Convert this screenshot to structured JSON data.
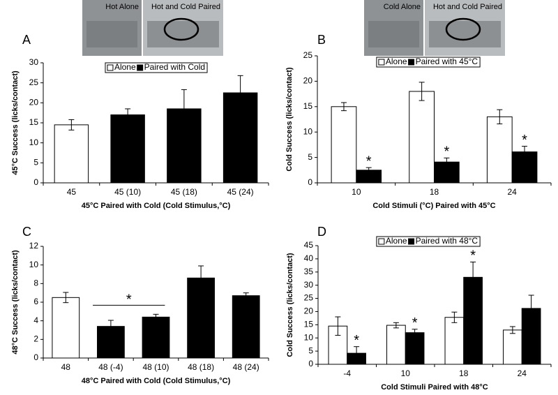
{
  "chart_data": [
    {
      "type": "bar",
      "panel": "A",
      "photo_labels": [
        "Hot Alone",
        "Hot and Cold Paired"
      ],
      "ylabel": "45°C Success (licks/contact)",
      "xlabel": "45°C Paired with Cold (Cold Stimulus,°C)",
      "categories": [
        "45",
        "45 (10)",
        "45 (18)",
        "45 (24)"
      ],
      "series": [
        {
          "name": "Alone",
          "color": "#ffffff",
          "values": [
            14.5,
            null,
            null,
            null
          ],
          "errors": [
            1.3,
            null,
            null,
            null
          ]
        },
        {
          "name": "Paired with Cold",
          "color": "#000000",
          "values": [
            null,
            17,
            18.5,
            22.5
          ],
          "errors": [
            null,
            1.5,
            4.8,
            4.3
          ]
        }
      ],
      "ylim": [
        0,
        30
      ],
      "yticks": [
        0,
        5,
        10,
        15,
        20,
        25,
        30
      ],
      "legend": "top"
    },
    {
      "type": "bar",
      "panel": "B",
      "photo_labels": [
        "Cold Alone",
        "Hot and Cold Paired"
      ],
      "ylabel": "Cold Success (licks/contact)",
      "xlabel": "Cold Stimuli (°C) Paired with 45°C",
      "categories": [
        "10",
        "18",
        "24"
      ],
      "series": [
        {
          "name": "Alone",
          "color": "#ffffff",
          "values": [
            15,
            18,
            13
          ],
          "errors": [
            0.8,
            1.8,
            1.4
          ]
        },
        {
          "name": "Paired with 45°C",
          "color": "#000000",
          "values": [
            2.5,
            4.1,
            6.1
          ],
          "errors": [
            0.5,
            0.8,
            1.1
          ],
          "markers": [
            "*",
            "*",
            "*"
          ]
        }
      ],
      "ylim": [
        0,
        25
      ],
      "yticks": [
        0,
        5,
        10,
        15,
        20,
        25
      ],
      "legend": "top"
    },
    {
      "type": "bar",
      "panel": "C",
      "ylabel": "48°C Success (licks/contact)",
      "xlabel": "48°C Paired with Cold (Cold Stimulus,°C)",
      "categories": [
        "48",
        "48 (-4)",
        "48 (10)",
        "48 (18)",
        "48 (24)"
      ],
      "values": [
        6.5,
        3.4,
        4.4,
        8.6,
        6.7
      ],
      "errors": [
        0.55,
        0.65,
        0.3,
        1.3,
        0.3
      ],
      "colors": [
        "#ffffff",
        "#000000",
        "#000000",
        "#000000",
        "#000000"
      ],
      "bracket": {
        "text": "*",
        "categories": [
          1,
          2
        ]
      },
      "ylim": [
        0,
        12
      ],
      "yticks": [
        0,
        2,
        4,
        6,
        8,
        10,
        12
      ]
    },
    {
      "type": "bar",
      "panel": "D",
      "ylabel": "Cold Success (licks/contact)",
      "xlabel": "Cold Stimuli Paired with 48°C",
      "categories": [
        "-4",
        "10",
        "18",
        "24"
      ],
      "series": [
        {
          "name": "Alone",
          "color": "#ffffff",
          "values": [
            14.5,
            14.8,
            17.8,
            13
          ],
          "errors": [
            3.5,
            1,
            2,
            1.3
          ]
        },
        {
          "name": "Paired with 48°C",
          "color": "#000000",
          "values": [
            4.2,
            12,
            33,
            21.2
          ],
          "errors": [
            2.5,
            1.3,
            5.8,
            5
          ],
          "markers": [
            "*",
            "*",
            "*",
            null
          ]
        }
      ],
      "ylim": [
        0,
        45
      ],
      "yticks": [
        0,
        5,
        10,
        15,
        20,
        25,
        30,
        35,
        40,
        45
      ],
      "legend": "top"
    }
  ]
}
